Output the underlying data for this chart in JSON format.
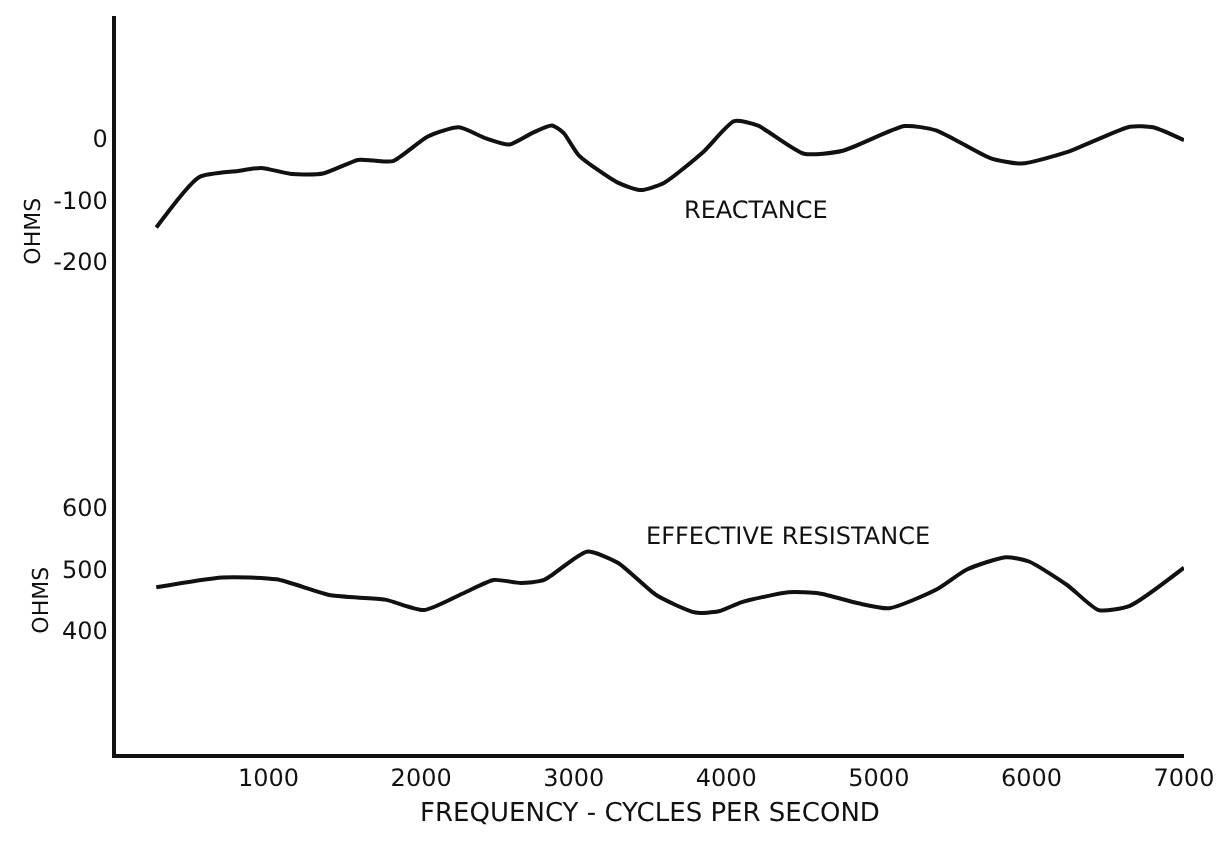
{
  "chart_data": [
    {
      "type": "line",
      "ylabel": "OHMS",
      "tick_labels": "y",
      "line_style": "solid",
      "marker": "none",
      "x": [
        264,
        544,
        798,
        951,
        1154,
        1357,
        1586,
        1688,
        1815,
        2044,
        2247,
        2425,
        2578,
        2730,
        2857,
        2933,
        3035,
        3289,
        3442,
        3594,
        3849,
        4052,
        4205,
        4510,
        4764,
        5170,
        5374,
        5730,
        5933,
        6238,
        6645,
        6797,
        7000
      ],
      "series": [
        {
          "color": "#111111",
          "values": [
            -144,
            -62,
            -52,
            -47,
            -57,
            -56,
            -34,
            -35,
            -36,
            4,
            19,
            1,
            -9,
            10,
            22,
            10,
            -27,
            -71,
            -83,
            -71,
            -21,
            29,
            22,
            -24,
            -19,
            21,
            14,
            -31,
            -40,
            -21,
            20,
            19,
            -2
          ]
        }
      ],
      "xlim": [
        0,
        7000
      ],
      "ylim": [
        -500,
        200
      ],
      "yticks": [
        0,
        -100,
        -200
      ],
      "annotations": [
        "REACTANCE"
      ]
    },
    {
      "type": "line",
      "ylabel": "OHMS",
      "xlabel": "FREQUENCY - CYCLES PER SECOND",
      "line_style": "solid",
      "marker": "none",
      "x": [
        264,
        696,
        1052,
        1408,
        1764,
        2018,
        2273,
        2476,
        2654,
        2806,
        3086,
        3289,
        3543,
        3798,
        3950,
        4103,
        4408,
        4611,
        4865,
        5068,
        5374,
        5577,
        5831,
        5984,
        6238,
        6441,
        6645,
        7000
      ],
      "series": [
        {
          "color": "#111111",
          "values": [
            471,
            487,
            484,
            458,
            451,
            434,
            461,
            483,
            478,
            483,
            529,
            511,
            458,
            430,
            432,
            447,
            463,
            461,
            445,
            437,
            467,
            500,
            520,
            513,
            474,
            434,
            441,
            503
          ]
        }
      ],
      "xlim": [
        0,
        7000
      ],
      "ylim": [
        200,
        700
      ],
      "xticks": [
        1000,
        2000,
        3000,
        4000,
        5000,
        6000,
        7000
      ],
      "yticks": [
        600,
        500,
        400
      ],
      "annotations": [
        "EFFECTIVE RESISTANCE"
      ]
    }
  ]
}
